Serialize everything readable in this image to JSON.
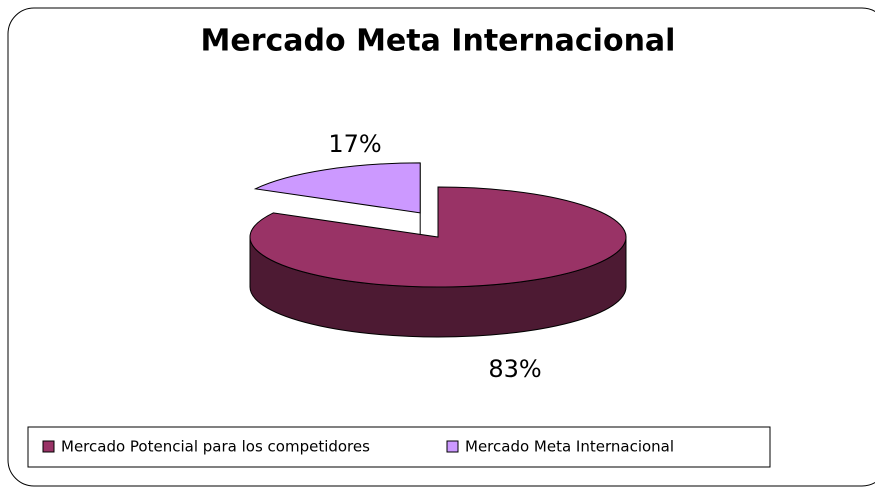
{
  "chart_data": {
    "type": "pie",
    "title": "Mercado Meta Internacional",
    "categories": [
      "Mercado Potencial para los competidores",
      "Mercado Meta Internacional"
    ],
    "values": [
      83,
      17
    ],
    "value_labels": [
      "83%",
      "17%"
    ],
    "colors": [
      "#993366",
      "#cc99ff"
    ],
    "legend": "bottom"
  }
}
